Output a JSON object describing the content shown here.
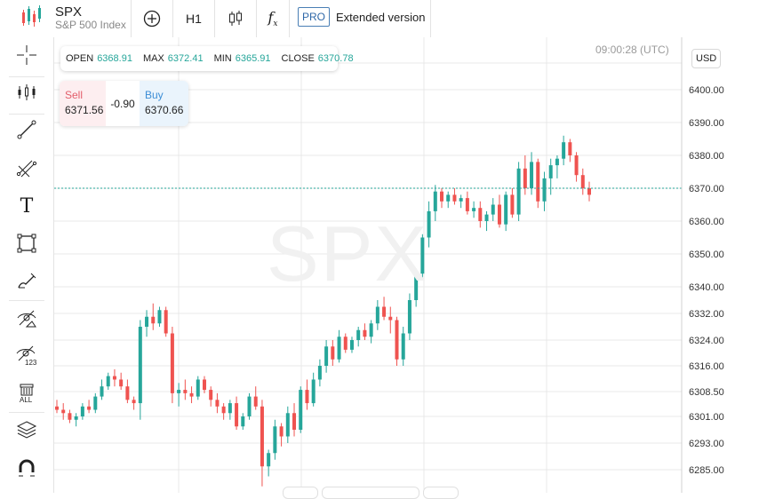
{
  "symbol": {
    "name": "SPX",
    "description": "S&P 500 Index"
  },
  "toolbar": {
    "timeframe": "H1",
    "pro_badge": "PRO",
    "extended_label": "Extended version"
  },
  "sidebar_tools": [
    "crosshair-icon",
    "indicators-icon",
    "trend-line-icon",
    "fibonacci-icon",
    "text-icon",
    "rectangle-icon",
    "brush-icon",
    "hide-drawings-icon",
    "hide-indicators-icon",
    "delete-all-icon",
    "layers-icon",
    "magnet-icon"
  ],
  "delete_all_label": "ALL",
  "hide_indicators_label": "123",
  "ohlc": {
    "open_label": "OPEN",
    "open": "6368.91",
    "max_label": "MAX",
    "max": "6372.41",
    "min_label": "MIN",
    "min": "6365.91",
    "close_label": "CLOSE",
    "close": "6370.78"
  },
  "trade": {
    "sell_label": "Sell",
    "sell_price": "6371.56",
    "spread": "-0.90",
    "buy_label": "Buy",
    "buy_price": "6370.66"
  },
  "timestamp": "09:00:28 (UTC)",
  "currency": "USD",
  "watermark": "SPX",
  "colors": {
    "up": "#26a69a",
    "down": "#ef5350",
    "current_line": "#26a69a"
  },
  "chart_data": {
    "type": "candlestick",
    "y_ticks": [
      "6285.00",
      "6293.00",
      "6301.00",
      "6308.50",
      "6316.00",
      "6324.00",
      "6332.00",
      "6340.00",
      "6350.00",
      "6360.00",
      "6370.00",
      "6380.00",
      "6390.00",
      "6400.00"
    ],
    "current_price": 6370.0,
    "candles": [
      [
        6304,
        6306,
        6302,
        6303
      ],
      [
        6303,
        6305,
        6300,
        6302
      ],
      [
        6302,
        6303,
        6299,
        6300
      ],
      [
        6300,
        6302,
        6298,
        6301
      ],
      [
        6301,
        6305,
        6300,
        6304
      ],
      [
        6304,
        6306,
        6302,
        6303
      ],
      [
        6303,
        6308,
        6302,
        6307
      ],
      [
        6307,
        6312,
        6306,
        6310
      ],
      [
        6310,
        6314,
        6309,
        6313
      ],
      [
        6313,
        6315,
        6310,
        6312
      ],
      [
        6312,
        6314,
        6309,
        6310
      ],
      [
        6310,
        6312,
        6305,
        6306
      ],
      [
        6306,
        6307,
        6303,
        6305
      ],
      [
        6305,
        6330,
        6300,
        6328
      ],
      [
        6328,
        6333,
        6325,
        6331
      ],
      [
        6331,
        6335,
        6327,
        6329
      ],
      [
        6329,
        6334,
        6328,
        6333
      ],
      [
        6333,
        6334,
        6325,
        6326
      ],
      [
        6326,
        6328,
        6305,
        6308
      ],
      [
        6308,
        6311,
        6304,
        6309
      ],
      [
        6309,
        6312,
        6306,
        6308
      ],
      [
        6308,
        6310,
        6305,
        6307
      ],
      [
        6307,
        6313,
        6306,
        6312
      ],
      [
        6312,
        6313,
        6308,
        6309
      ],
      [
        6309,
        6310,
        6304,
        6306
      ],
      [
        6306,
        6308,
        6302,
        6304
      ],
      [
        6304,
        6305,
        6300,
        6302
      ],
      [
        6302,
        6306,
        6300,
        6305
      ],
      [
        6305,
        6307,
        6297,
        6298
      ],
      [
        6298,
        6302,
        6297,
        6301
      ],
      [
        6301,
        6308,
        6300,
        6307
      ],
      [
        6307,
        6310,
        6303,
        6304
      ],
      [
        6304,
        6306,
        6280,
        6286
      ],
      [
        6286,
        6291,
        6283,
        6290
      ],
      [
        6290,
        6300,
        6288,
        6298
      ],
      [
        6298,
        6299,
        6292,
        6295
      ],
      [
        6295,
        6304,
        6293,
        6302
      ],
      [
        6302,
        6305,
        6295,
        6297
      ],
      [
        6297,
        6310,
        6296,
        6309
      ],
      [
        6309,
        6312,
        6303,
        6305
      ],
      [
        6305,
        6314,
        6304,
        6312
      ],
      [
        6312,
        6318,
        6310,
        6316
      ],
      [
        6316,
        6324,
        6314,
        6322
      ],
      [
        6322,
        6324,
        6316,
        6318
      ],
      [
        6318,
        6327,
        6317,
        6325
      ],
      [
        6325,
        6326,
        6320,
        6321
      ],
      [
        6321,
        6325,
        6320,
        6324
      ],
      [
        6324,
        6328,
        6322,
        6327
      ],
      [
        6327,
        6329,
        6324,
        6325
      ],
      [
        6325,
        6330,
        6323,
        6329
      ],
      [
        6329,
        6336,
        6327,
        6334
      ],
      [
        6334,
        6337,
        6330,
        6331
      ],
      [
        6331,
        6334,
        6326,
        6330
      ],
      [
        6330,
        6331,
        6316,
        6318
      ],
      [
        6318,
        6328,
        6316,
        6326
      ],
      [
        6326,
        6338,
        6324,
        6336
      ],
      [
        6336,
        6345,
        6334,
        6344
      ],
      [
        6344,
        6356,
        6342,
        6355
      ],
      [
        6355,
        6366,
        6352,
        6363
      ],
      [
        6363,
        6371,
        6360,
        6369
      ],
      [
        6369,
        6370,
        6364,
        6366
      ],
      [
        6366,
        6369,
        6364,
        6368
      ],
      [
        6368,
        6370,
        6365,
        6366
      ],
      [
        6366,
        6368,
        6364,
        6367
      ],
      [
        6367,
        6369,
        6362,
        6363
      ],
      [
        6363,
        6366,
        6361,
        6364
      ],
      [
        6364,
        6366,
        6358,
        6360
      ],
      [
        6360,
        6363,
        6357,
        6362
      ],
      [
        6362,
        6367,
        6360,
        6365
      ],
      [
        6365,
        6368,
        6358,
        6359
      ],
      [
        6359,
        6369,
        6357,
        6368
      ],
      [
        6368,
        6370,
        6361,
        6362
      ],
      [
        6362,
        6378,
        6360,
        6376
      ],
      [
        6376,
        6380,
        6368,
        6370
      ],
      [
        6370,
        6381,
        6368,
        6378
      ],
      [
        6378,
        6379,
        6364,
        6366
      ],
      [
        6366,
        6375,
        6363,
        6373
      ],
      [
        6373,
        6379,
        6368,
        6377
      ],
      [
        6377,
        6380,
        6373,
        6379
      ],
      [
        6379,
        6386,
        6377,
        6384
      ],
      [
        6384,
        6385,
        6378,
        6380
      ],
      [
        6380,
        6381,
        6372,
        6374
      ],
      [
        6374,
        6376,
        6368,
        6370
      ],
      [
        6370,
        6372,
        6366,
        6368
      ]
    ]
  }
}
